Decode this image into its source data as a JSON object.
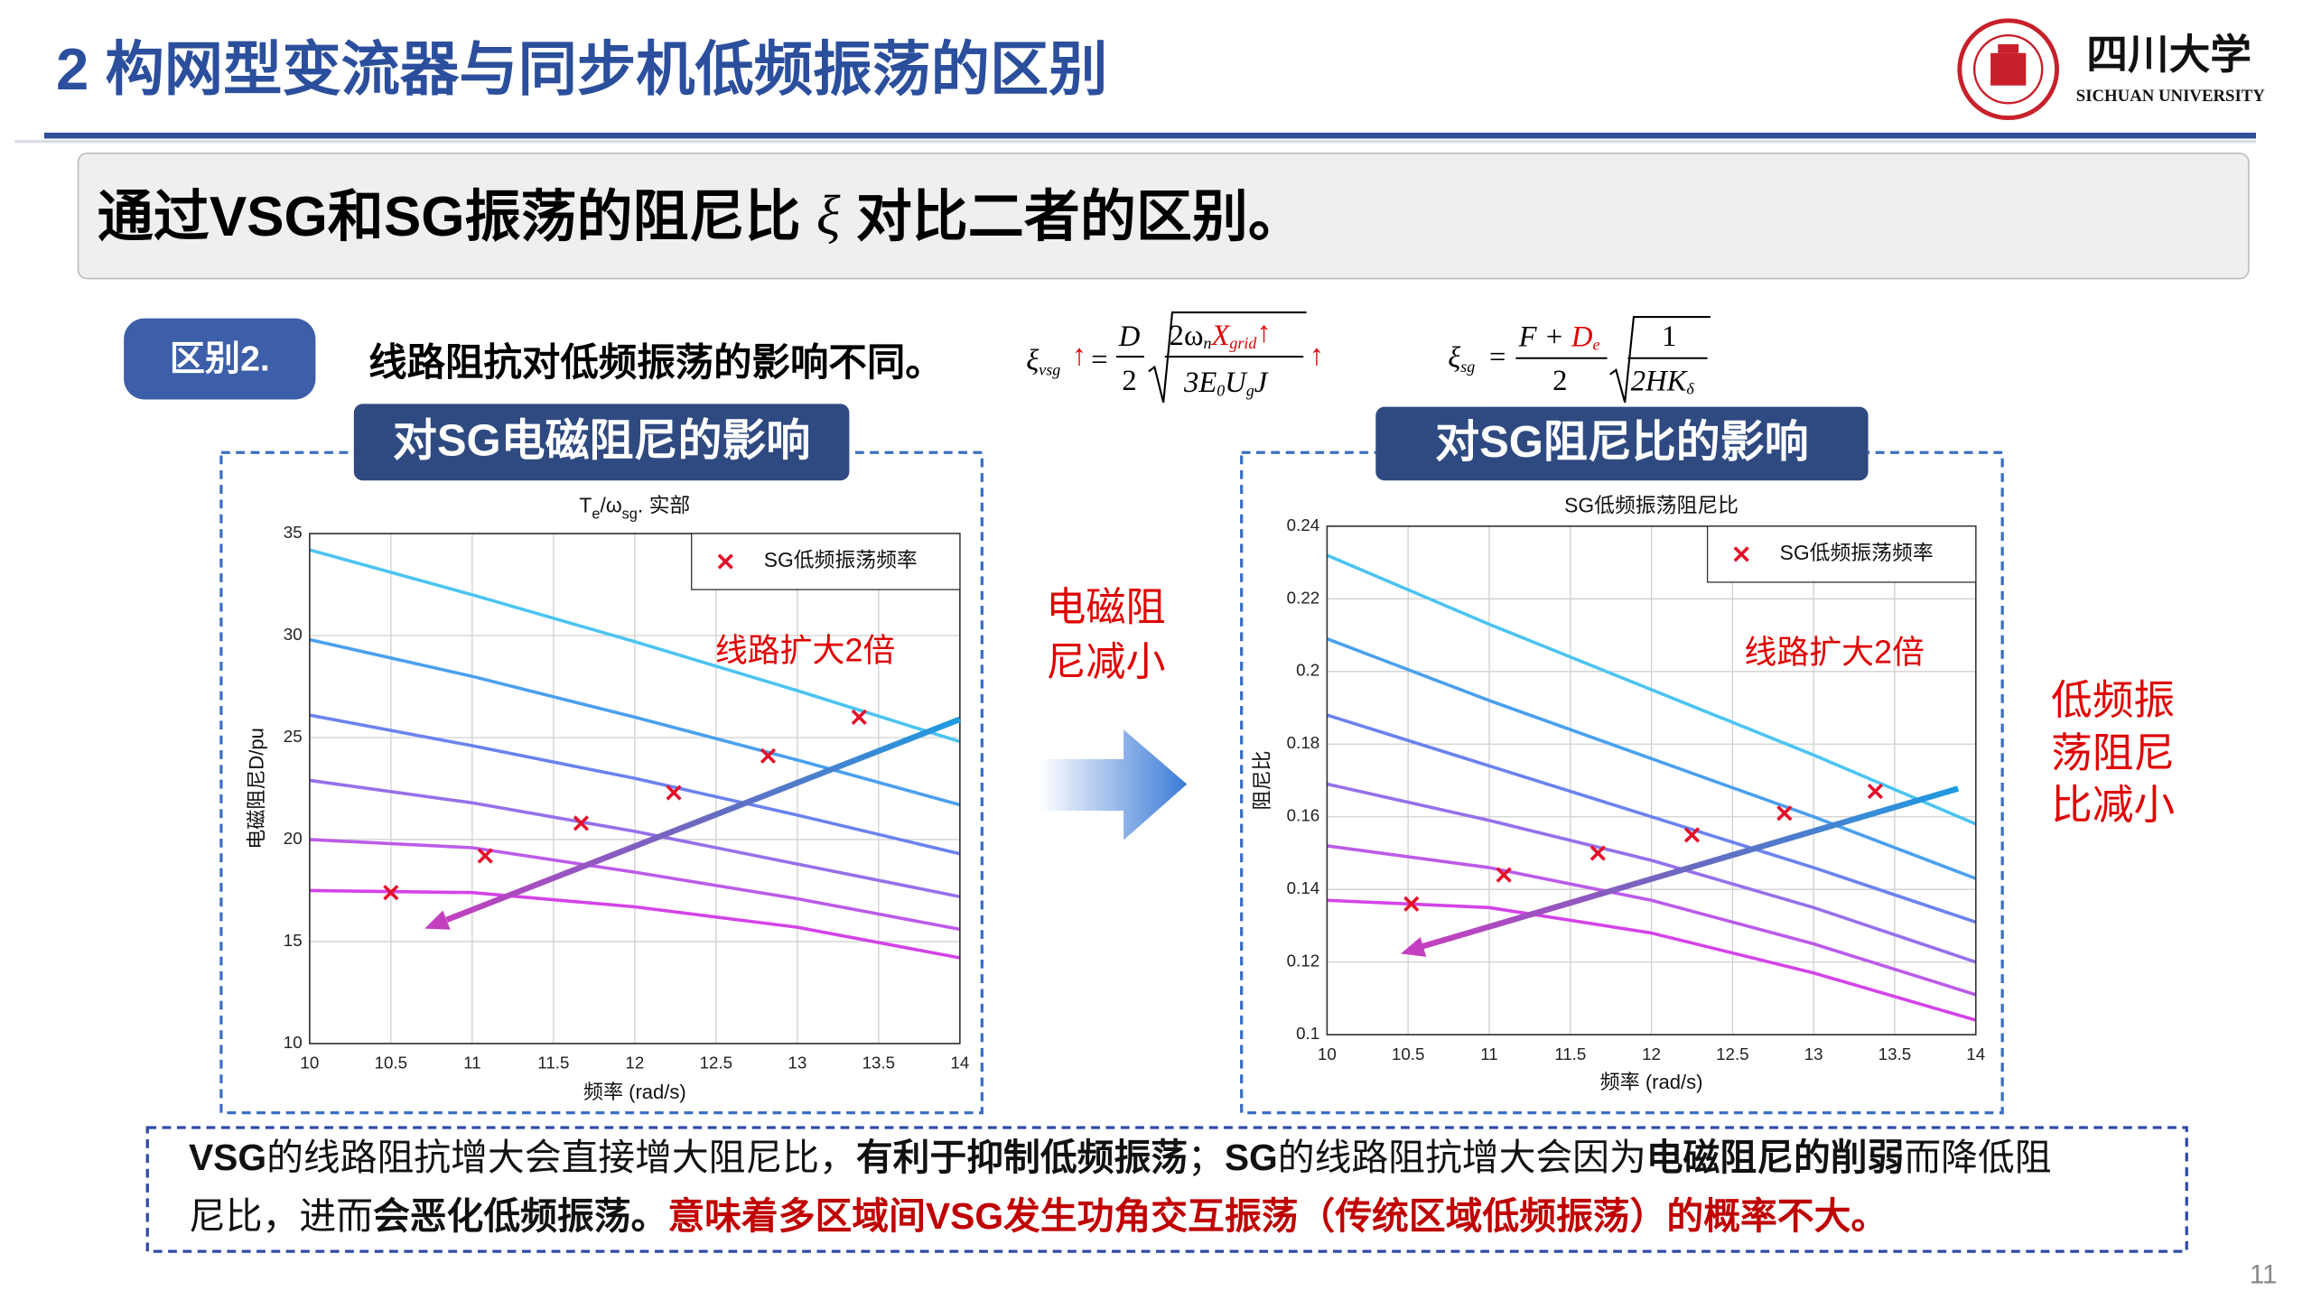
{
  "header": {
    "title": "2 构网型变流器与同步机低频振荡的区别",
    "logo_cn": "四川大学",
    "logo_en": "SICHUAN UNIVERSITY"
  },
  "banner": {
    "text_before": "通过VSG和SG振荡的阻尼比 ",
    "symbol": "ξ",
    "text_after": " 对比二者的区别。"
  },
  "badge": "区别2.",
  "subtitle": "线路阻抗对低频振荡的影响不同。",
  "formulas": [
    {
      "xi": "ξ",
      "xi_sub": "vsg",
      "up": "↑",
      "eq": "=",
      "num": "D",
      "den": "2",
      "root_num": "2ω",
      "root_num_sub": "n",
      "root_x": "X",
      "root_x_sub": "grid",
      "root_up": "↑",
      "root_den": "3E",
      "root_den_sub": "0",
      "root_u": "U",
      "root_u_sub": "g",
      "root_j": "J",
      "up_right": "↑"
    },
    {
      "xi": "ξ",
      "xi_sub": "sg",
      "eq": "=",
      "num": "F + ",
      "num_d": "D",
      "num_d_sub": "e",
      "den": "2",
      "root_num": "1",
      "root_den": "2HK",
      "root_den_sub": "δ"
    }
  ],
  "chart_data": [
    {
      "type": "line",
      "heading": "对SG电磁阻尼的影响",
      "title": [
        {
          "text": "T"
        },
        {
          "text": "e",
          "sub": true
        },
        {
          "text": "/ω"
        },
        {
          "text": "sg",
          "sub": true
        },
        {
          "text": ". 实部"
        }
      ],
      "xlabel": "频率 (rad/s)",
      "ylabel": "电磁阻尼D/pu",
      "annotation": "线路扩大2倍",
      "x": [
        10,
        11,
        12,
        13,
        14
      ],
      "series": [
        {
          "color": "#4cc4f2",
          "values": [
            34.2,
            32.0,
            29.7,
            27.3,
            24.8
          ]
        },
        {
          "color": "#4aa0ee",
          "values": [
            29.8,
            28.0,
            26.0,
            23.9,
            21.7
          ]
        },
        {
          "color": "#6b82ee",
          "values": [
            26.1,
            24.6,
            23.0,
            21.2,
            19.3
          ]
        },
        {
          "color": "#9670ea",
          "values": [
            22.9,
            21.8,
            20.4,
            18.8,
            17.2
          ]
        },
        {
          "color": "#bb5be9",
          "values": [
            20.0,
            19.6,
            18.4,
            17.1,
            15.6
          ]
        },
        {
          "color": "#d443e8",
          "values": [
            17.5,
            17.4,
            16.7,
            15.7,
            14.2
          ]
        }
      ],
      "scatter": {
        "name": "SG低频振荡频率",
        "color": "#e3102a",
        "x": [
          10.5,
          11.08,
          11.67,
          12.24,
          12.82,
          13.38
        ],
        "values": [
          17.4,
          19.2,
          20.8,
          22.3,
          24.1,
          26.0
        ]
      },
      "xlim": [
        10,
        14
      ],
      "xticks": [
        10,
        10.5,
        11,
        11.5,
        12,
        12.5,
        13,
        13.5,
        14
      ],
      "ylim": [
        10,
        35
      ],
      "yticks": [
        10,
        15,
        20,
        25,
        30,
        35
      ],
      "grid": true,
      "legend": "upper right"
    },
    {
      "type": "line",
      "heading": "对SG阻尼比的影响",
      "title": [
        {
          "text": "SG低频振荡阻尼比"
        }
      ],
      "xlabel": "频率 (rad/s)",
      "ylabel": "阻尼比",
      "annotation": "线路扩大2倍",
      "x": [
        10,
        11,
        12,
        13,
        14
      ],
      "series": [
        {
          "color": "#4cc4f2",
          "values": [
            0.232,
            0.213,
            0.195,
            0.177,
            0.158
          ]
        },
        {
          "color": "#4aa0ee",
          "values": [
            0.209,
            0.192,
            0.176,
            0.16,
            0.143
          ]
        },
        {
          "color": "#6b82ee",
          "values": [
            0.188,
            0.174,
            0.16,
            0.146,
            0.131
          ]
        },
        {
          "color": "#9670ea",
          "values": [
            0.169,
            0.159,
            0.148,
            0.135,
            0.12
          ]
        },
        {
          "color": "#bb5be9",
          "values": [
            0.152,
            0.146,
            0.137,
            0.125,
            0.111
          ]
        },
        {
          "color": "#d443e8",
          "values": [
            0.137,
            0.135,
            0.128,
            0.117,
            0.104
          ]
        }
      ],
      "scatter": {
        "name": "SG低频振荡频率",
        "color": "#e3102a",
        "x": [
          10.52,
          11.09,
          11.67,
          12.25,
          12.82,
          13.38
        ],
        "values": [
          0.136,
          0.144,
          0.15,
          0.155,
          0.161,
          0.167
        ]
      },
      "xlim": [
        10,
        14
      ],
      "xticks": [
        10,
        10.5,
        11,
        11.5,
        12,
        12.5,
        13,
        13.5,
        14
      ],
      "ylim": [
        0.1,
        0.24
      ],
      "yticks": [
        0.1,
        0.12,
        0.14,
        0.16,
        0.18,
        0.2,
        0.22,
        0.24
      ],
      "grid": true,
      "legend": "upper right"
    }
  ],
  "middle_note": [
    "电磁阻",
    "尼减小"
  ],
  "right_note": [
    "低频振",
    "荡阻尼",
    "比减小"
  ],
  "conclusion": [
    [
      {
        "text": "VSG",
        "bold": true
      },
      {
        "text": "的线路阻抗增大会直接增大阻尼比，"
      },
      {
        "text": "有利于抑制低频振荡",
        "bold": true
      },
      {
        "text": "；"
      },
      {
        "text": "SG",
        "bold": true
      },
      {
        "text": "的线路阻抗增大会因为"
      },
      {
        "text": "电磁阻尼的削弱",
        "bold": true
      },
      {
        "text": "而降低阻"
      }
    ],
    [
      {
        "text": "尼比，进而"
      },
      {
        "text": "会恶化低频振荡。",
        "bold": true
      },
      {
        "text": "意味着多区域间VSG发生功角交互振荡（传统区域低频振荡）的概率不大。",
        "bold": true,
        "color": "#c00000"
      }
    ]
  ],
  "page_number": "11"
}
